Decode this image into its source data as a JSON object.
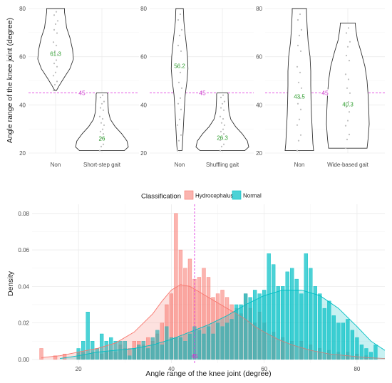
{
  "colors": {
    "hydrocephalus": "#f8766d",
    "normal": "#00bfc4",
    "threshold": "#e040e0",
    "median_text": "#2e9e2e",
    "violin_stroke": "#333333"
  },
  "chart_data": [
    {
      "type": "violin",
      "ylabel": "Angle range of the knee joint (degree)",
      "ylim": [
        20,
        80
      ],
      "yticks": [
        20,
        40,
        60,
        80
      ],
      "threshold": {
        "value": 45,
        "label": "45"
      },
      "groups": [
        {
          "label": "Non",
          "min": 46,
          "max": 80,
          "median": 61.3,
          "median_label": "61.3",
          "profile": [
            [
              46,
              0.05
            ],
            [
              48,
              0.2
            ],
            [
              51,
              0.45
            ],
            [
              55,
              0.8
            ],
            [
              59,
              1
            ],
            [
              63,
              0.95
            ],
            [
              68,
              0.8
            ],
            [
              72,
              0.62
            ],
            [
              76,
              0.55
            ],
            [
              78.5,
              0.5
            ],
            [
              80,
              0.5
            ]
          ]
        },
        {
          "label": "Short-step gait",
          "min": 21,
          "max": 45,
          "median": 26,
          "median_label": "26",
          "profile": [
            [
              21,
              0.85
            ],
            [
              22.5,
              1
            ],
            [
              25,
              0.95
            ],
            [
              28,
              0.75
            ],
            [
              31,
              0.5
            ],
            [
              34,
              0.32
            ],
            [
              37,
              0.25
            ],
            [
              40,
              0.23
            ],
            [
              43,
              0.22
            ],
            [
              44.5,
              0.22
            ],
            [
              45,
              0.2
            ]
          ]
        }
      ]
    },
    {
      "type": "violin",
      "ylim": [
        20,
        80
      ],
      "yticks": [
        20,
        40,
        60,
        80
      ],
      "threshold": {
        "value": 45,
        "label": "45"
      },
      "groups": [
        {
          "label": "Non",
          "min": 21,
          "max": 80,
          "median": 56.2,
          "median_label": "56.2",
          "profile": [
            [
              21,
              0.25
            ],
            [
              23,
              0.3
            ],
            [
              27,
              0.35
            ],
            [
              32,
              0.42
            ],
            [
              38,
              0.5
            ],
            [
              44,
              0.6
            ],
            [
              50,
              0.8
            ],
            [
              55,
              0.9
            ],
            [
              60,
              0.85
            ],
            [
              66,
              0.7
            ],
            [
              71,
              0.55
            ],
            [
              75,
              0.45
            ],
            [
              78.5,
              0.42
            ],
            [
              80,
              0.4
            ]
          ]
        },
        {
          "label": "Shuffling gait",
          "min": 21,
          "max": 45,
          "median": 26.3,
          "median_label": "26.3",
          "profile": [
            [
              21,
              0.85
            ],
            [
              22.5,
              1
            ],
            [
              25,
              0.95
            ],
            [
              28,
              0.75
            ],
            [
              31,
              0.5
            ],
            [
              34,
              0.32
            ],
            [
              37,
              0.25
            ],
            [
              40,
              0.23
            ],
            [
              43,
              0.22
            ],
            [
              44.5,
              0.22
            ],
            [
              45,
              0.2
            ]
          ]
        }
      ]
    },
    {
      "type": "violin",
      "ylim": [
        20,
        80
      ],
      "yticks": [
        20,
        40,
        60,
        80
      ],
      "threshold": {
        "value": 45,
        "label": "45"
      },
      "groups": [
        {
          "label": "Non",
          "min": 21,
          "max": 80,
          "median": 43.5,
          "median_label": "43.5",
          "profile": [
            [
              21,
              1
            ],
            [
              24,
              0.95
            ],
            [
              30,
              0.9
            ],
            [
              36,
              0.85
            ],
            [
              42,
              0.82
            ],
            [
              48,
              0.8
            ],
            [
              54,
              0.8
            ],
            [
              60,
              0.75
            ],
            [
              66,
              0.62
            ],
            [
              72,
              0.55
            ],
            [
              78.5,
              0.5
            ],
            [
              80,
              0.5
            ]
          ]
        },
        {
          "label": "Wide-based gait",
          "min": 22,
          "max": 74,
          "median": 40.3,
          "median_label": "40.3",
          "profile": [
            [
              22,
              0.9
            ],
            [
              26,
              0.95
            ],
            [
              32,
              1
            ],
            [
              38,
              0.98
            ],
            [
              44,
              0.95
            ],
            [
              50,
              0.9
            ],
            [
              56,
              0.8
            ],
            [
              62,
              0.62
            ],
            [
              67,
              0.45
            ],
            [
              71,
              0.38
            ],
            [
              73.5,
              0.35
            ],
            [
              74,
              0.35
            ]
          ]
        }
      ]
    },
    {
      "type": "histogram",
      "xlabel": "Angle range of the knee joint (degree)",
      "ylabel": "Density",
      "xlim": [
        10,
        86
      ],
      "ylim": [
        -0.002,
        0.085
      ],
      "xticks": [
        20,
        40,
        60,
        80
      ],
      "yticks": [
        0.0,
        0.02,
        0.04,
        0.06,
        0.08
      ],
      "ytick_labels": [
        "0.00",
        "0.02",
        "0.04",
        "0.06",
        "0.08"
      ],
      "bin_width": 0.75,
      "legend": {
        "title": "Classification",
        "position": "top"
      },
      "threshold": {
        "value": 45,
        "label": "45"
      },
      "series": [
        {
          "name": "Hydrocephalus",
          "color_key": "hydrocephalus",
          "bins": [
            [
              12,
              0.006
            ],
            [
              15,
              0.002
            ],
            [
              17,
              0.003
            ],
            [
              20,
              0.004
            ],
            [
              21,
              0.004
            ],
            [
              23,
              0.004
            ],
            [
              25,
              0.003
            ],
            [
              26,
              0.004
            ],
            [
              27,
              0.005
            ],
            [
              28,
              0.004
            ],
            [
              29,
              0.008
            ],
            [
              30,
              0.006
            ],
            [
              31,
              0.006
            ],
            [
              32,
              0.01
            ],
            [
              33,
              0.01
            ],
            [
              34,
              0.008
            ],
            [
              35,
              0.012
            ],
            [
              36,
              0.01
            ],
            [
              37,
              0.014
            ],
            [
              38,
              0.02
            ],
            [
              39,
              0.03
            ],
            [
              40,
              0.036
            ],
            [
              41,
              0.08
            ],
            [
              42,
              0.06
            ],
            [
              43,
              0.05
            ],
            [
              44,
              0.055
            ],
            [
              45,
              0.044
            ],
            [
              46,
              0.045
            ],
            [
              47,
              0.05
            ],
            [
              48,
              0.045
            ],
            [
              49,
              0.034
            ],
            [
              50,
              0.036
            ],
            [
              51,
              0.038
            ],
            [
              52,
              0.034
            ],
            [
              53,
              0.03
            ],
            [
              54,
              0.028
            ],
            [
              55,
              0.025
            ],
            [
              56,
              0.036
            ],
            [
              57,
              0.028
            ],
            [
              58,
              0.02
            ],
            [
              59,
              0.026
            ],
            [
              60,
              0.02
            ],
            [
              62,
              0.015
            ],
            [
              64,
              0.012
            ],
            [
              66,
              0.01
            ],
            [
              68,
              0.01
            ],
            [
              70,
              0.008
            ],
            [
              72,
              0.006
            ],
            [
              74,
              0.005
            ],
            [
              76,
              0.004
            ],
            [
              78,
              0.004
            ],
            [
              80,
              0.003
            ],
            [
              82,
              0.002
            ]
          ],
          "density": [
            [
              12,
              0.001
            ],
            [
              16,
              0.002
            ],
            [
              20,
              0.004
            ],
            [
              24,
              0.006
            ],
            [
              28,
              0.009
            ],
            [
              32,
              0.015
            ],
            [
              36,
              0.025
            ],
            [
              38,
              0.032
            ],
            [
              40,
              0.038
            ],
            [
              42,
              0.041
            ],
            [
              44,
              0.04
            ],
            [
              46,
              0.037
            ],
            [
              48,
              0.034
            ],
            [
              50,
              0.031
            ],
            [
              52,
              0.028
            ],
            [
              54,
              0.025
            ],
            [
              56,
              0.022
            ],
            [
              58,
              0.018
            ],
            [
              60,
              0.015
            ],
            [
              63,
              0.011
            ],
            [
              66,
              0.008
            ],
            [
              70,
              0.005
            ],
            [
              74,
              0.003
            ],
            [
              78,
              0.002
            ],
            [
              82,
              0.001
            ],
            [
              86,
              0.0005
            ]
          ]
        },
        {
          "name": "Normal",
          "color_key": "normal",
          "bins": [
            [
              20,
              0.006
            ],
            [
              21,
              0.01
            ],
            [
              22,
              0.026
            ],
            [
              23,
              0.01
            ],
            [
              24,
              0.006
            ],
            [
              25,
              0.014
            ],
            [
              26,
              0.01
            ],
            [
              27,
              0.012
            ],
            [
              28,
              0.01
            ],
            [
              29,
              0.01
            ],
            [
              30,
              0.01
            ],
            [
              31,
              0.002
            ],
            [
              32,
              0.006
            ],
            [
              33,
              0.008
            ],
            [
              34,
              0.01
            ],
            [
              35,
              0.006
            ],
            [
              36,
              0.012
            ],
            [
              37,
              0.016
            ],
            [
              38,
              0.008
            ],
            [
              39,
              0.018
            ],
            [
              40,
              0.012
            ],
            [
              41,
              0.012
            ],
            [
              42,
              0.012
            ],
            [
              43,
              0.01
            ],
            [
              44,
              0.014
            ],
            [
              45,
              0.018
            ],
            [
              46,
              0.016
            ],
            [
              47,
              0.014
            ],
            [
              48,
              0.018
            ],
            [
              49,
              0.014
            ],
            [
              50,
              0.02
            ],
            [
              51,
              0.018
            ],
            [
              52,
              0.02
            ],
            [
              53,
              0.022
            ],
            [
              54,
              0.03
            ],
            [
              55,
              0.03
            ],
            [
              56,
              0.036
            ],
            [
              57,
              0.034
            ],
            [
              58,
              0.038
            ],
            [
              59,
              0.036
            ],
            [
              60,
              0.038
            ],
            [
              61,
              0.058
            ],
            [
              62,
              0.052
            ],
            [
              63,
              0.04
            ],
            [
              64,
              0.04
            ],
            [
              65,
              0.048
            ],
            [
              66,
              0.05
            ],
            [
              67,
              0.044
            ],
            [
              68,
              0.036
            ],
            [
              69,
              0.058
            ],
            [
              70,
              0.05
            ],
            [
              71,
              0.04
            ],
            [
              72,
              0.036
            ],
            [
              73,
              0.028
            ],
            [
              74,
              0.032
            ],
            [
              75,
              0.024
            ],
            [
              76,
              0.02
            ],
            [
              77,
              0.02
            ],
            [
              78,
              0.022
            ],
            [
              79,
              0.016
            ],
            [
              80,
              0.012
            ],
            [
              81,
              0.008
            ],
            [
              82,
              0.006
            ],
            [
              83,
              0.004
            ],
            [
              84,
              0.008
            ]
          ],
          "density": [
            [
              16,
              0.0005
            ],
            [
              20,
              0.002
            ],
            [
              24,
              0.004
            ],
            [
              28,
              0.005
            ],
            [
              32,
              0.006
            ],
            [
              36,
              0.008
            ],
            [
              40,
              0.011
            ],
            [
              44,
              0.015
            ],
            [
              48,
              0.019
            ],
            [
              52,
              0.024
            ],
            [
              56,
              0.03
            ],
            [
              60,
              0.035
            ],
            [
              64,
              0.038
            ],
            [
              68,
              0.038
            ],
            [
              72,
              0.035
            ],
            [
              76,
              0.028
            ],
            [
              80,
              0.018
            ],
            [
              83,
              0.01
            ],
            [
              86,
              0.005
            ]
          ]
        }
      ]
    }
  ]
}
